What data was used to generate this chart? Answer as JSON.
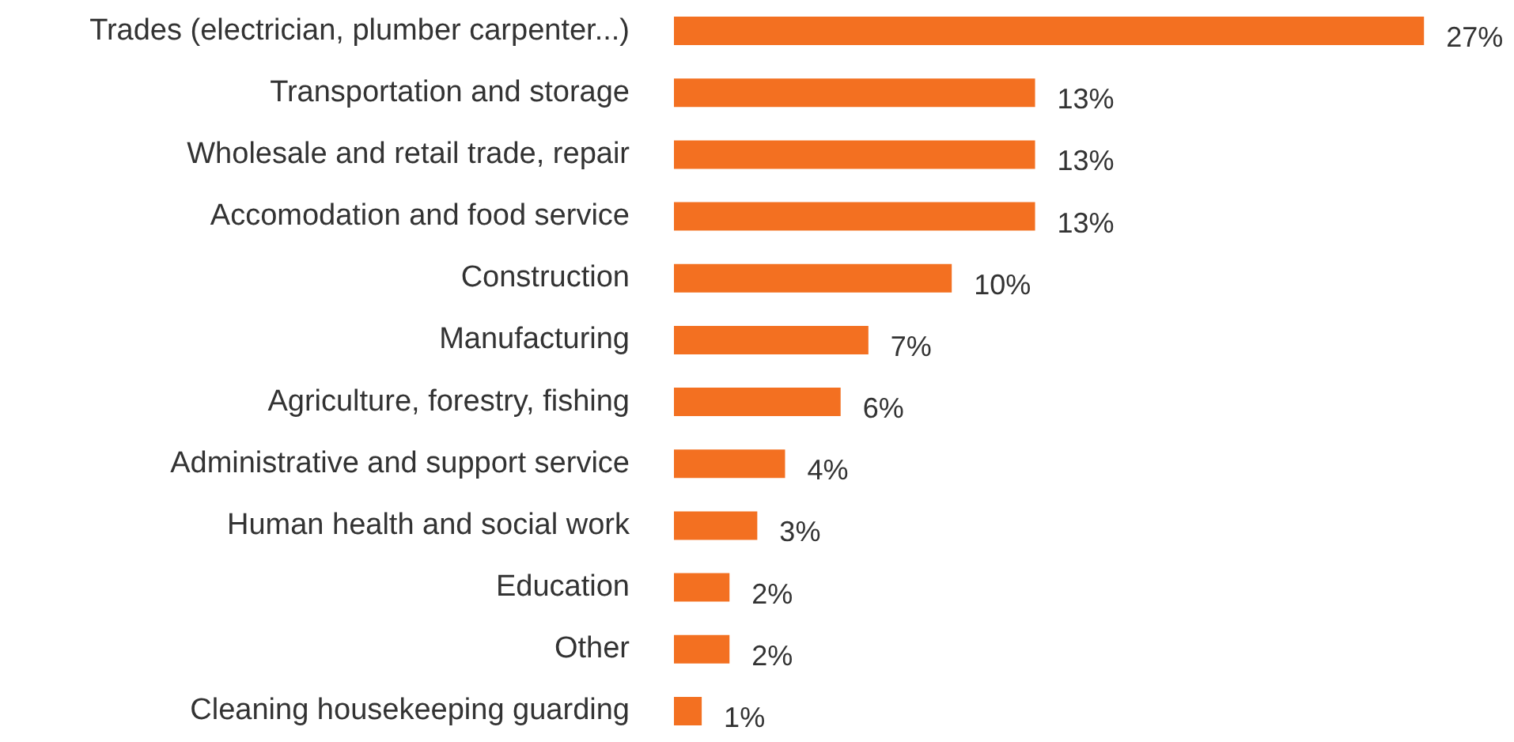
{
  "chart_data": {
    "type": "bar",
    "orientation": "horizontal",
    "categories": [
      "Trades (electrician, plumber carpenter...)",
      "Transportation and storage",
      "Wholesale and retail trade, repair",
      "Accomodation and food service",
      "Construction",
      "Manufacturing",
      "Agriculture, forestry, fishing",
      "Administrative and support service",
      "Human health and social work",
      "Education",
      "Other",
      "Cleaning housekeeping guarding"
    ],
    "values": [
      27,
      13,
      13,
      13,
      10,
      7,
      6,
      4,
      3,
      2,
      2,
      1
    ],
    "value_labels": [
      "27%",
      "13%",
      "13%",
      "13%",
      "10%",
      "7%",
      "6%",
      "4%",
      "3%",
      "2%",
      "2%",
      "1%"
    ],
    "color": "#f37021"
  }
}
